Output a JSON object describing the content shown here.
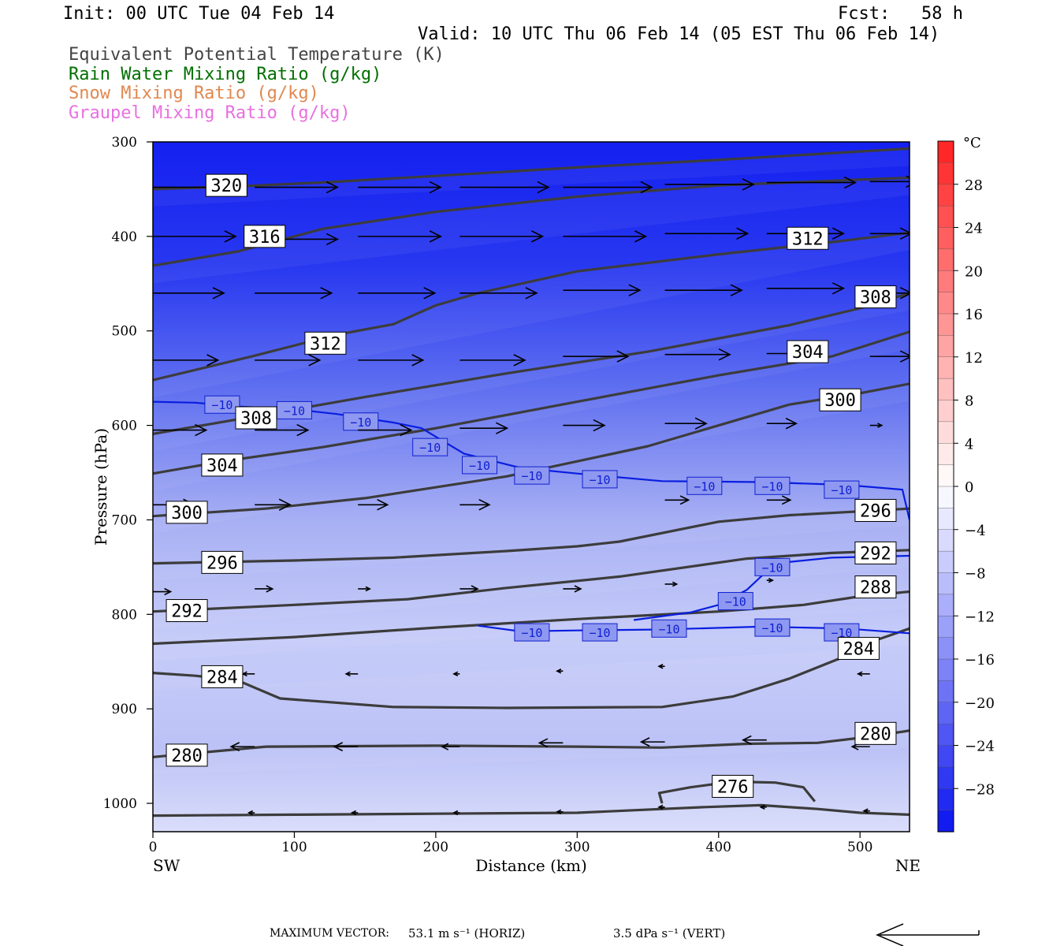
{
  "header": {
    "init": "Init: 00 UTC Tue 04 Feb 14",
    "fcst": "Fcst:   58 h",
    "valid": "Valid: 10 UTC Thu 06 Feb 14 (05 EST Thu 06 Feb 14)"
  },
  "legend": [
    {
      "label": "Equivalent Potential Temperature (K)",
      "color": "#444444"
    },
    {
      "label": "Rain Water Mixing Ratio (g/kg)",
      "color": "#007000"
    },
    {
      "label": "Snow Mixing Ratio (g/kg)",
      "color": "#e08850"
    },
    {
      "label": "Graupel Mixing Ratio (g/kg)",
      "color": "#e870e0"
    }
  ],
  "footer": {
    "max_vector_label": "MAXIMUM VECTOR:",
    "horiz": "53.1 m s⁻¹ (HORIZ)",
    "vert": "3.5 dPa s⁻¹ (VERT)"
  },
  "chart_data": {
    "type": "cross-section",
    "xlabel": "Distance (km)",
    "ylabel": "Pressure (hPa)",
    "xlim": [
      0,
      535
    ],
    "ylim": [
      1030,
      300
    ],
    "x_ticks": [
      0,
      100,
      200,
      300,
      400,
      500
    ],
    "y_ticks": [
      300,
      400,
      500,
      600,
      700,
      800,
      900,
      1000
    ],
    "left_end_label": "SW",
    "right_end_label": "NE",
    "colorbar": {
      "unit": "°C",
      "tick_labels": [
        "28",
        "24",
        "20",
        "16",
        "12",
        "8",
        "4",
        "0",
        "−4",
        "−8",
        "−12",
        "−16",
        "−20",
        "−24",
        "−28"
      ],
      "tick_values": [
        28,
        24,
        20,
        16,
        12,
        8,
        4,
        0,
        -4,
        -8,
        -12,
        -16,
        -20,
        -24,
        -28
      ],
      "min": -32,
      "max": 32,
      "step": 2,
      "cold_color": "#0a14f0",
      "neutral_color": "#ffffff",
      "warm_color": "#ff2020"
    },
    "theta_e_contours": [
      {
        "value": 320,
        "label": "320",
        "points": [
          [
            0,
            350
          ],
          [
            60,
            347
          ],
          [
            120,
            343
          ],
          [
            200,
            336
          ],
          [
            300,
            327
          ],
          [
            400,
            319
          ],
          [
            535,
            307
          ]
        ],
        "label_at": [
          52,
          346
        ]
      },
      {
        "value": 316,
        "label": "316",
        "points": [
          [
            0,
            431
          ],
          [
            60,
            416
          ],
          [
            120,
            392
          ],
          [
            200,
            374
          ],
          [
            300,
            358
          ],
          [
            400,
            346
          ],
          [
            500,
            340
          ],
          [
            535,
            338
          ]
        ],
        "label_at": [
          79,
          400
        ]
      },
      {
        "value": 312,
        "label": "312",
        "points": [
          [
            0,
            552
          ],
          [
            70,
            527
          ],
          [
            130,
            504
          ],
          [
            170,
            493
          ],
          [
            200,
            473
          ],
          [
            230,
            460
          ],
          [
            300,
            437
          ],
          [
            400,
            419
          ],
          [
            480,
            406
          ],
          [
            535,
            396
          ]
        ],
        "label_at": [
          122,
          513
        ],
        "label2": "312",
        "label2_at": [
          463,
          402
        ]
      },
      {
        "value": 308,
        "label": "308",
        "points": [
          [
            0,
            609
          ],
          [
            70,
            591
          ],
          [
            150,
            570
          ],
          [
            250,
            545
          ],
          [
            350,
            522
          ],
          [
            450,
            494
          ],
          [
            500,
            476
          ],
          [
            535,
            460
          ]
        ],
        "label_at": [
          73,
          592
        ],
        "label2": "308",
        "label2_at": [
          511,
          464
        ]
      },
      {
        "value": 304,
        "label": "304",
        "points": [
          [
            0,
            651
          ],
          [
            50,
            638
          ],
          [
            120,
            623
          ],
          [
            200,
            603
          ],
          [
            300,
            575
          ],
          [
            400,
            547
          ],
          [
            480,
            527
          ],
          [
            535,
            501
          ]
        ],
        "label_at": [
          49,
          642
        ],
        "label2": "304",
        "label2_at": [
          463,
          522
        ]
      },
      {
        "value": 300,
        "label": "300",
        "points": [
          [
            0,
            696
          ],
          [
            80,
            688
          ],
          [
            150,
            677
          ],
          [
            250,
            654
          ],
          [
            350,
            622
          ],
          [
            450,
            578
          ],
          [
            500,
            566
          ],
          [
            535,
            556
          ]
        ],
        "label_at": [
          24,
          692
        ],
        "label2": "300",
        "label2_at": [
          486,
          573
        ]
      },
      {
        "value": 296,
        "label": "296",
        "points": [
          [
            0,
            746
          ],
          [
            100,
            743
          ],
          [
            170,
            740
          ],
          [
            250,
            733
          ],
          [
            300,
            728
          ],
          [
            330,
            723
          ],
          [
            400,
            702
          ],
          [
            450,
            695
          ],
          [
            500,
            691
          ],
          [
            535,
            688
          ]
        ],
        "label_at": [
          49,
          745
        ],
        "label2": "296",
        "label2_at": [
          511,
          690
        ]
      },
      {
        "value": 292,
        "label": "292",
        "points": [
          [
            0,
            797
          ],
          [
            100,
            790
          ],
          [
            180,
            784
          ],
          [
            250,
            772
          ],
          [
            330,
            760
          ],
          [
            420,
            741
          ],
          [
            480,
            735
          ],
          [
            535,
            732
          ]
        ],
        "label_at": [
          24,
          796
        ],
        "label2": "292",
        "label2_at": [
          511,
          735
        ]
      },
      {
        "value": 288,
        "label": "288",
        "points": [
          [
            0,
            831
          ],
          [
            100,
            824
          ],
          [
            200,
            814
          ],
          [
            300,
            805
          ],
          [
            400,
            797
          ],
          [
            460,
            790
          ],
          [
            500,
            781
          ],
          [
            535,
            776
          ]
        ],
        "label_at": [
          511,
          771
        ]
      },
      {
        "value": 284,
        "label": "284",
        "points": [
          [
            0,
            862
          ],
          [
            30,
            865
          ],
          [
            60,
            870
          ],
          [
            90,
            889
          ],
          [
            170,
            898
          ],
          [
            250,
            899
          ],
          [
            360,
            898
          ],
          [
            410,
            887
          ],
          [
            450,
            868
          ],
          [
            490,
            844
          ],
          [
            510,
            828
          ],
          [
            535,
            815
          ]
        ],
        "label_at": [
          49,
          866
        ],
        "label2": "284",
        "label2_at": [
          499,
          836
        ]
      },
      {
        "value": 280,
        "label": "280",
        "points": [
          [
            0,
            951
          ],
          [
            80,
            940
          ],
          [
            200,
            939
          ],
          [
            300,
            940
          ],
          [
            360,
            941
          ],
          [
            420,
            937
          ],
          [
            470,
            936
          ],
          [
            510,
            929
          ],
          [
            535,
            923
          ]
        ],
        "label_at": [
          24,
          949
        ],
        "label2": "280",
        "label2_at": [
          511,
          926
        ]
      },
      {
        "value": 276,
        "label": "276",
        "points": [
          [
            360,
            1000
          ],
          [
            358,
            989
          ],
          [
            380,
            983
          ],
          [
            410,
            977
          ],
          [
            440,
            978
          ],
          [
            460,
            983
          ],
          [
            468,
            998
          ]
        ],
        "label_at": [
          410,
          982
        ]
      },
      {
        "value": null,
        "label": "",
        "points": [
          [
            0,
            1013
          ],
          [
            100,
            1012
          ],
          [
            200,
            1011
          ],
          [
            300,
            1010
          ],
          [
            360,
            1006
          ],
          [
            390,
            1004
          ],
          [
            430,
            1002
          ],
          [
            470,
            1006
          ],
          [
            500,
            1010
          ],
          [
            535,
            1012
          ]
        ]
      }
    ],
    "isotherm_minus10": {
      "value": -10,
      "label": "−10",
      "upper": [
        [
          0,
          575
        ],
        [
          30,
          576
        ],
        [
          60,
          580
        ],
        [
          100,
          583
        ],
        [
          130,
          588
        ],
        [
          170,
          597
        ],
        [
          190,
          603
        ],
        [
          220,
          630
        ],
        [
          260,
          645
        ],
        [
          300,
          651
        ],
        [
          360,
          659
        ],
        [
          430,
          660
        ],
        [
          490,
          663
        ],
        [
          530,
          668
        ],
        [
          535,
          700
        ]
      ],
      "lower": [
        [
          230,
          812
        ],
        [
          260,
          818
        ],
        [
          300,
          817
        ],
        [
          360,
          816
        ],
        [
          430,
          813
        ],
        [
          490,
          815
        ],
        [
          535,
          820
        ]
      ],
      "branch": [
        [
          340,
          806
        ],
        [
          380,
          798
        ],
        [
          400,
          790
        ],
        [
          420,
          774
        ],
        [
          440,
          746
        ],
        [
          480,
          740
        ],
        [
          535,
          738
        ]
      ],
      "label_positions": [
        [
          49,
          578
        ],
        [
          100,
          584
        ],
        [
          147,
          596
        ],
        [
          196,
          623
        ],
        [
          231,
          642
        ],
        [
          268,
          653
        ],
        [
          316,
          657
        ],
        [
          390,
          664
        ],
        [
          438,
          664
        ],
        [
          487,
          668
        ],
        [
          412,
          786
        ],
        [
          438,
          750
        ],
        [
          268,
          819
        ],
        [
          316,
          819
        ],
        [
          365,
          815
        ],
        [
          438,
          814
        ],
        [
          487,
          819
        ]
      ]
    },
    "wind_vectors": [
      {
        "x": 0,
        "p": 348,
        "u": 12,
        "w": 0
      },
      {
        "x": 72,
        "p": 348,
        "u": 14,
        "w": 0
      },
      {
        "x": 145,
        "p": 348,
        "u": 14,
        "w": 0
      },
      {
        "x": 217,
        "p": 348,
        "u": 15,
        "w": 0
      },
      {
        "x": 290,
        "p": 348,
        "u": 15,
        "w": 0
      },
      {
        "x": 362,
        "p": 345,
        "u": 15,
        "w": 0
      },
      {
        "x": 434,
        "p": 343,
        "u": 15,
        "w": 0
      },
      {
        "x": 507,
        "p": 342,
        "u": 8,
        "w": 0
      },
      {
        "x": 0,
        "p": 400,
        "u": 14,
        "w": 0
      },
      {
        "x": 72,
        "p": 403,
        "u": 14,
        "w": 0
      },
      {
        "x": 145,
        "p": 400,
        "u": 14,
        "w": 0
      },
      {
        "x": 217,
        "p": 400,
        "u": 14,
        "w": 0
      },
      {
        "x": 290,
        "p": 400,
        "u": 14,
        "w": 0
      },
      {
        "x": 362,
        "p": 397,
        "u": 14,
        "w": 0
      },
      {
        "x": 434,
        "p": 397,
        "u": 13,
        "w": 0
      },
      {
        "x": 507,
        "p": 397,
        "u": 7,
        "w": 0
      },
      {
        "x": 0,
        "p": 460,
        "u": 12,
        "w": 0
      },
      {
        "x": 72,
        "p": 460,
        "u": 13,
        "w": 0
      },
      {
        "x": 145,
        "p": 460,
        "u": 13,
        "w": 0
      },
      {
        "x": 217,
        "p": 460,
        "u": 13,
        "w": 0
      },
      {
        "x": 290,
        "p": 457,
        "u": 13,
        "w": 0
      },
      {
        "x": 362,
        "p": 457,
        "u": 13,
        "w": 0
      },
      {
        "x": 434,
        "p": 455,
        "u": 13,
        "w": 0
      },
      {
        "x": 507,
        "p": 460,
        "u": 7,
        "w": 0
      },
      {
        "x": 0,
        "p": 531,
        "u": 11,
        "w": 0
      },
      {
        "x": 72,
        "p": 531,
        "u": 11,
        "w": 0
      },
      {
        "x": 145,
        "p": 531,
        "u": 11,
        "w": 0
      },
      {
        "x": 217,
        "p": 531,
        "u": 11,
        "w": 0
      },
      {
        "x": 290,
        "p": 527,
        "u": 11,
        "w": 0
      },
      {
        "x": 362,
        "p": 525,
        "u": 11,
        "w": 0
      },
      {
        "x": 434,
        "p": 524,
        "u": 10,
        "w": 0
      },
      {
        "x": 507,
        "p": 527,
        "u": 7,
        "w": 0
      },
      {
        "x": 0,
        "p": 605,
        "u": 9,
        "w": 0
      },
      {
        "x": 72,
        "p": 605,
        "u": 9,
        "w": 0
      },
      {
        "x": 145,
        "p": 605,
        "u": 9,
        "w": 0
      },
      {
        "x": 217,
        "p": 603,
        "u": 8,
        "w": 0
      },
      {
        "x": 290,
        "p": 600,
        "u": 7,
        "w": 0
      },
      {
        "x": 362,
        "p": 598,
        "u": 7,
        "w": 0
      },
      {
        "x": 434,
        "p": 598,
        "u": 5,
        "w": 0
      },
      {
        "x": 507,
        "p": 600,
        "u": 2,
        "w": 0
      },
      {
        "x": 0,
        "p": 684,
        "u": 7,
        "w": 0
      },
      {
        "x": 72,
        "p": 684,
        "u": 6,
        "w": 0
      },
      {
        "x": 145,
        "p": 684,
        "u": 5,
        "w": 0
      },
      {
        "x": 217,
        "p": 684,
        "u": 5,
        "w": 0
      },
      {
        "x": 362,
        "p": 679,
        "u": 4,
        "w": 0
      },
      {
        "x": 434,
        "p": 679,
        "u": 4,
        "w": 0
      },
      {
        "x": 0,
        "p": 776,
        "u": 3,
        "w": 0
      },
      {
        "x": 72,
        "p": 773,
        "u": 3,
        "w": 0
      },
      {
        "x": 145,
        "p": 773,
        "u": 2,
        "w": 0
      },
      {
        "x": 217,
        "p": 773,
        "u": 3,
        "w": 0
      },
      {
        "x": 290,
        "p": 773,
        "u": 3,
        "w": 0
      },
      {
        "x": 362,
        "p": 768,
        "u": 2,
        "w": 0
      },
      {
        "x": 434,
        "p": 764,
        "u": 1,
        "w": 0
      },
      {
        "x": 72,
        "p": 863,
        "u": -2,
        "w": 0
      },
      {
        "x": 145,
        "p": 863,
        "u": -2,
        "w": 0
      },
      {
        "x": 217,
        "p": 863,
        "u": -1,
        "w": 0
      },
      {
        "x": 290,
        "p": 860,
        "u": -1,
        "w": 0
      },
      {
        "x": 362,
        "p": 855,
        "u": -1,
        "w": 0
      },
      {
        "x": 507,
        "p": 863,
        "u": -2,
        "w": 0
      },
      {
        "x": 72,
        "p": 940,
        "u": -4,
        "w": 0
      },
      {
        "x": 145,
        "p": 940,
        "u": -4,
        "w": 0
      },
      {
        "x": 217,
        "p": 940,
        "u": -3,
        "w": 0
      },
      {
        "x": 290,
        "p": 936,
        "u": -4,
        "w": 0
      },
      {
        "x": 362,
        "p": 935,
        "u": -4,
        "w": 0
      },
      {
        "x": 434,
        "p": 933,
        "u": -4,
        "w": 0
      },
      {
        "x": 507,
        "p": 940,
        "u": -3,
        "w": 0
      },
      {
        "x": 72,
        "p": 1010,
        "u": -1,
        "w": 0
      },
      {
        "x": 145,
        "p": 1010,
        "u": -1,
        "w": 0
      },
      {
        "x": 217,
        "p": 1010,
        "u": -1,
        "w": 0
      },
      {
        "x": 290,
        "p": 1009,
        "u": -1,
        "w": 0
      },
      {
        "x": 362,
        "p": 1004,
        "u": -1,
        "w": 0
      },
      {
        "x": 434,
        "p": 1004,
        "u": -1,
        "w": 0
      },
      {
        "x": 507,
        "p": 1008,
        "u": -1,
        "w": 0
      }
    ]
  }
}
